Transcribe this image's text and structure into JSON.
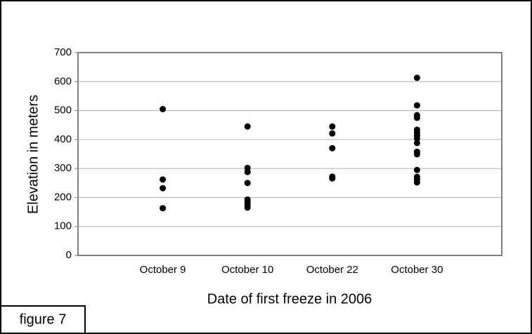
{
  "chart_data": {
    "type": "scatter",
    "x_label": "Date of first freeze in 2006",
    "y_label": "Elevation in meters",
    "categories": [
      "October 9",
      "October 10",
      "October 22",
      "October 30"
    ],
    "values": [
      [
        505,
        262,
        232,
        163
      ],
      [
        445,
        302,
        288,
        250,
        193,
        184,
        174,
        165
      ],
      [
        445,
        421,
        370,
        272,
        266
      ],
      [
        613,
        518,
        484,
        475,
        434,
        424,
        414,
        404,
        388,
        358,
        349,
        295,
        271,
        262,
        252
      ]
    ],
    "color": "#000000",
    "ylim": [
      0,
      700
    ],
    "yticks": [
      0,
      100,
      200,
      300,
      400,
      500,
      600,
      700
    ],
    "grid": true,
    "annotations": [
      "figure 7"
    ]
  }
}
